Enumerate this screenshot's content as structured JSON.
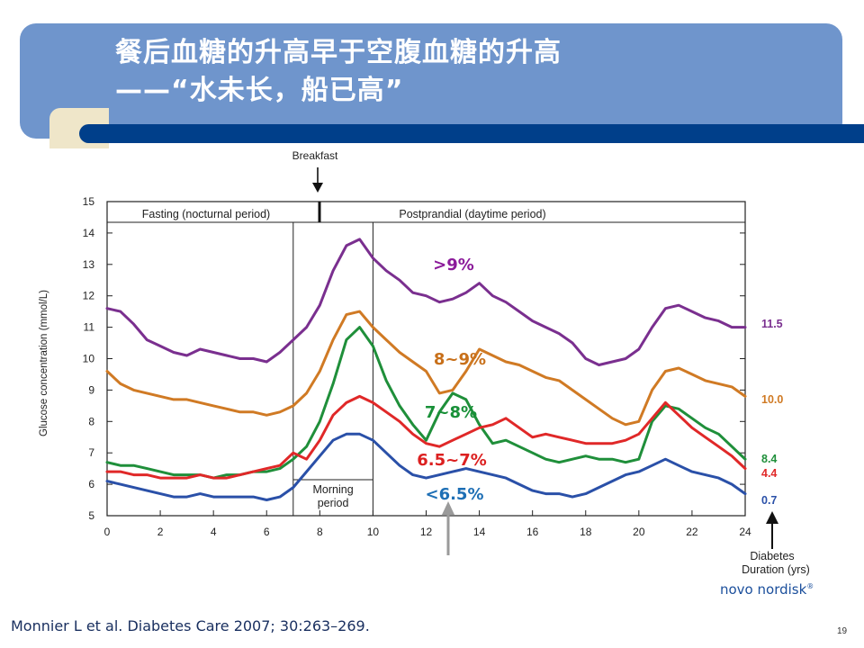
{
  "slide": {
    "title_line1": "餐后血糖的升高早于空腹血糖的升高",
    "title_line2": "——“水未长，船已高”",
    "citation": "Monnier L et al.  Diabetes Care 2007; 30:263–269.",
    "page_number": "19",
    "logo_text": "novo nordisk",
    "logo_mark": "®",
    "colors": {
      "banner": "#6f95cc",
      "stripe": "#003f8a",
      "notch": "#efe6c9"
    }
  },
  "chart_data": {
    "type": "line",
    "ylabel": "Glucose concentration (mmol/L)",
    "xlim": [
      0,
      24
    ],
    "ylim": [
      5,
      15
    ],
    "xticks": [
      0,
      2,
      4,
      6,
      8,
      10,
      12,
      14,
      16,
      18,
      20,
      22,
      24
    ],
    "yticks": [
      5,
      6,
      7,
      8,
      9,
      10,
      11,
      12,
      13,
      14,
      15
    ],
    "annotations": {
      "breakfast": "Breakfast",
      "fasting": "Fasting (nocturnal period)",
      "postprandial": "Postprandial (daytime period)",
      "morning_line1": "Morning",
      "morning_line2": "period",
      "duration_line1": "Diabetes",
      "duration_line2": "Duration (yrs)"
    },
    "series": [
      {
        "name": ">9%",
        "color": "#7a2f8f",
        "label_color": "#8b1a9a",
        "duration": "11.5",
        "x": [
          0,
          0.5,
          1,
          1.5,
          2,
          2.5,
          3,
          3.5,
          4,
          4.5,
          5,
          5.5,
          6,
          6.5,
          7,
          7.5,
          8,
          8.5,
          9,
          9.5,
          10,
          10.5,
          11,
          11.5,
          12,
          12.5,
          13,
          13.5,
          14,
          14.5,
          15,
          15.5,
          16,
          16.5,
          17,
          17.5,
          18,
          18.5,
          19,
          19.5,
          20,
          20.5,
          21,
          21.5,
          22,
          22.5,
          23,
          23.5,
          24
        ],
        "y": [
          11.6,
          11.5,
          11.1,
          10.6,
          10.4,
          10.2,
          10.1,
          10.3,
          10.2,
          10.1,
          10.0,
          10.0,
          9.9,
          10.2,
          10.6,
          11.0,
          11.7,
          12.8,
          13.6,
          13.8,
          13.2,
          12.8,
          12.5,
          12.1,
          12.0,
          11.8,
          11.9,
          12.1,
          12.4,
          12.0,
          11.8,
          11.5,
          11.2,
          11.0,
          10.8,
          10.5,
          10.0,
          9.8,
          9.9,
          10.0,
          10.3,
          11.0,
          11.6,
          11.7,
          11.5,
          11.3,
          11.2,
          11.0,
          11.0
        ]
      },
      {
        "name": "8~9%",
        "color": "#d07a24",
        "label_color": "#c8701a",
        "duration": "10.0",
        "x": [
          0,
          0.5,
          1,
          1.5,
          2,
          2.5,
          3,
          3.5,
          4,
          4.5,
          5,
          5.5,
          6,
          6.5,
          7,
          7.5,
          8,
          8.5,
          9,
          9.5,
          10,
          10.5,
          11,
          11.5,
          12,
          12.5,
          13,
          13.5,
          14,
          14.5,
          15,
          15.5,
          16,
          16.5,
          17,
          17.5,
          18,
          18.5,
          19,
          19.5,
          20,
          20.5,
          21,
          21.5,
          22,
          22.5,
          23,
          23.5,
          24
        ],
        "y": [
          9.6,
          9.2,
          9.0,
          8.9,
          8.8,
          8.7,
          8.7,
          8.6,
          8.5,
          8.4,
          8.3,
          8.3,
          8.2,
          8.3,
          8.5,
          8.9,
          9.6,
          10.6,
          11.4,
          11.5,
          11.0,
          10.6,
          10.2,
          9.9,
          9.6,
          8.9,
          9.0,
          9.6,
          10.3,
          10.1,
          9.9,
          9.8,
          9.6,
          9.4,
          9.3,
          9.0,
          8.7,
          8.4,
          8.1,
          7.9,
          8.0,
          9.0,
          9.6,
          9.7,
          9.5,
          9.3,
          9.2,
          9.1,
          8.8
        ]
      },
      {
        "name": "7~8%",
        "color": "#1f8f3a",
        "label_color": "#189038",
        "duration": "8.4",
        "x": [
          0,
          0.5,
          1,
          1.5,
          2,
          2.5,
          3,
          3.5,
          4,
          4.5,
          5,
          5.5,
          6,
          6.5,
          7,
          7.5,
          8,
          8.5,
          9,
          9.5,
          10,
          10.5,
          11,
          11.5,
          12,
          12.5,
          13,
          13.5,
          14,
          14.5,
          15,
          15.5,
          16,
          16.5,
          17,
          17.5,
          18,
          18.5,
          19,
          19.5,
          20,
          20.5,
          21,
          21.5,
          22,
          22.5,
          23,
          23.5,
          24
        ],
        "y": [
          6.7,
          6.6,
          6.6,
          6.5,
          6.4,
          6.3,
          6.3,
          6.3,
          6.2,
          6.3,
          6.3,
          6.4,
          6.4,
          6.5,
          6.8,
          7.2,
          8.0,
          9.2,
          10.6,
          11.0,
          10.4,
          9.3,
          8.5,
          7.9,
          7.4,
          8.3,
          8.9,
          8.7,
          7.9,
          7.3,
          7.4,
          7.2,
          7.0,
          6.8,
          6.7,
          6.8,
          6.9,
          6.8,
          6.8,
          6.7,
          6.8,
          8.0,
          8.5,
          8.4,
          8.1,
          7.8,
          7.6,
          7.2,
          6.8
        ]
      },
      {
        "name": "6.5~7%",
        "color": "#e02828",
        "label_color": "#dc2020",
        "duration": "4.4",
        "x": [
          0,
          0.5,
          1,
          1.5,
          2,
          2.5,
          3,
          3.5,
          4,
          4.5,
          5,
          5.5,
          6,
          6.5,
          7,
          7.5,
          8,
          8.5,
          9,
          9.5,
          10,
          10.5,
          11,
          11.5,
          12,
          12.5,
          13,
          13.5,
          14,
          14.5,
          15,
          15.5,
          16,
          16.5,
          17,
          17.5,
          18,
          18.5,
          19,
          19.5,
          20,
          20.5,
          21,
          21.5,
          22,
          22.5,
          23,
          23.5,
          24
        ],
        "y": [
          6.4,
          6.4,
          6.3,
          6.3,
          6.2,
          6.2,
          6.2,
          6.3,
          6.2,
          6.2,
          6.3,
          6.4,
          6.5,
          6.6,
          7.0,
          6.8,
          7.4,
          8.2,
          8.6,
          8.8,
          8.6,
          8.3,
          8.0,
          7.6,
          7.3,
          7.2,
          7.4,
          7.6,
          7.8,
          7.9,
          8.1,
          7.8,
          7.5,
          7.6,
          7.5,
          7.4,
          7.3,
          7.3,
          7.3,
          7.4,
          7.6,
          8.1,
          8.6,
          8.2,
          7.8,
          7.5,
          7.2,
          6.9,
          6.5
        ]
      },
      {
        "name": "<6.5%",
        "color": "#2a50a8",
        "label_color": "#1e6fb5",
        "duration": "0.7",
        "x": [
          0,
          0.5,
          1,
          1.5,
          2,
          2.5,
          3,
          3.5,
          4,
          4.5,
          5,
          5.5,
          6,
          6.5,
          7,
          7.5,
          8,
          8.5,
          9,
          9.5,
          10,
          10.5,
          11,
          11.5,
          12,
          12.5,
          13,
          13.5,
          14,
          14.5,
          15,
          15.5,
          16,
          16.5,
          17,
          17.5,
          18,
          18.5,
          19,
          19.5,
          20,
          20.5,
          21,
          21.5,
          22,
          22.5,
          23,
          23.5,
          24
        ],
        "y": [
          6.1,
          6.0,
          5.9,
          5.8,
          5.7,
          5.6,
          5.6,
          5.7,
          5.6,
          5.6,
          5.6,
          5.6,
          5.5,
          5.6,
          5.9,
          6.4,
          6.9,
          7.4,
          7.6,
          7.6,
          7.4,
          7.0,
          6.6,
          6.3,
          6.2,
          6.3,
          6.4,
          6.5,
          6.4,
          6.3,
          6.2,
          6.0,
          5.8,
          5.7,
          5.7,
          5.6,
          5.7,
          5.9,
          6.1,
          6.3,
          6.4,
          6.6,
          6.8,
          6.6,
          6.4,
          6.3,
          6.2,
          6.0,
          5.7
        ]
      }
    ]
  }
}
